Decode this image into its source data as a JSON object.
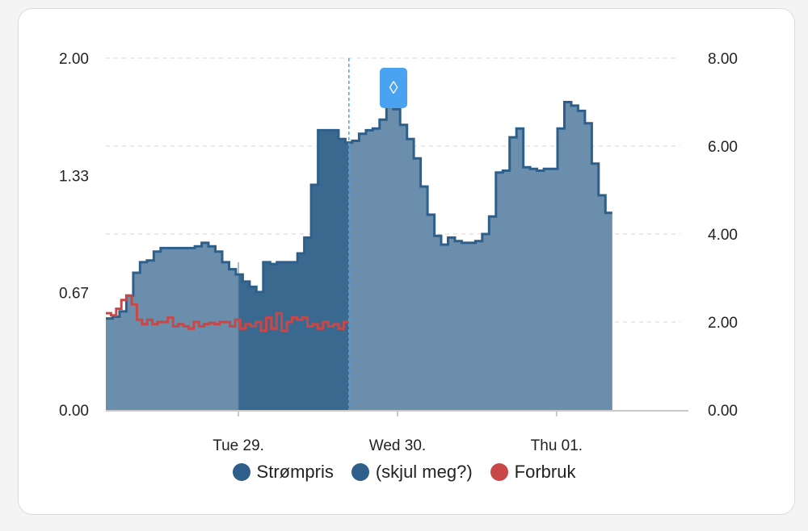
{
  "colors": {
    "price": "#2e5f8a",
    "price_fill": "#6a8eab",
    "hidden": "#2e5f8a",
    "hidden_fill": "#3a6990",
    "consumption": "#c84848",
    "grid": "#d6d6d6",
    "marker": "#4aa3f0"
  },
  "marker": {
    "icon": "up-down-arrow-icon",
    "glyph": "◊"
  },
  "chart_data": {
    "type": "area",
    "x_unit": "hour",
    "x_range": [
      0,
      65
    ],
    "x_ticks": [
      {
        "x": 15,
        "label": "Tue 29."
      },
      {
        "x": 33,
        "label": "Wed 30."
      },
      {
        "x": 51,
        "label": "Thu 01."
      }
    ],
    "y_left": {
      "range": [
        0,
        2.0
      ],
      "ticks": [
        "0.00",
        "0.67",
        "1.33",
        "2.00"
      ],
      "tick_values": [
        0,
        0.667,
        1.333,
        2.0
      ]
    },
    "y_right": {
      "range": [
        0,
        8.0
      ],
      "ticks": [
        "0.00",
        "2.00",
        "4.00",
        "6.00",
        "8.00"
      ],
      "tick_values": [
        0,
        2,
        4,
        6,
        8
      ]
    },
    "grid": true,
    "legend_position": "bottom",
    "now_x": 27.5,
    "series": [
      {
        "name": "Strømpris",
        "axis": "left",
        "step": true,
        "values": [
          0.52,
          0.53,
          0.56,
          0.65,
          0.78,
          0.84,
          0.85,
          0.9,
          0.92,
          0.92,
          0.92,
          0.92,
          0.92,
          0.93,
          0.95,
          0.93,
          0.9,
          0.84,
          0.8,
          0.77,
          0.73,
          0.7,
          0.67,
          0.84,
          0.83,
          0.84,
          0.84,
          0.84,
          0.89,
          0.98,
          1.28,
          1.59,
          1.59,
          1.59,
          1.54,
          1.52,
          1.53,
          1.57,
          1.59,
          1.6,
          1.65,
          1.75,
          1.71,
          1.62,
          1.54,
          1.43,
          1.27,
          1.11,
          0.99,
          0.94,
          0.98,
          0.96,
          0.95,
          0.95,
          0.96,
          1.0,
          1.1,
          1.35,
          1.36,
          1.55,
          1.6,
          1.38,
          1.37,
          1.36,
          1.37,
          1.37,
          1.6,
          1.75,
          1.73,
          1.7,
          1.63,
          1.4,
          1.22,
          1.12
        ]
      },
      {
        "name": "(skjul meg?)",
        "axis": "left",
        "step": true,
        "x_start": 15,
        "x_end": 27.5
      },
      {
        "name": "Forbruk",
        "axis": "right",
        "step": true,
        "values": [
          2.2,
          2.15,
          2.3,
          2.5,
          2.6,
          2.4,
          2.05,
          1.95,
          2.05,
          1.95,
          2.0,
          2.0,
          2.1,
          1.9,
          1.95,
          1.9,
          1.85,
          2.0,
          1.9,
          1.95,
          1.98,
          1.95,
          2.0,
          2.0,
          1.9,
          2.05,
          1.85,
          1.95,
          1.9,
          2.0,
          1.8,
          2.1,
          1.85,
          2.2,
          1.8,
          2.0,
          2.1,
          2.05,
          2.1,
          1.9,
          1.95,
          1.85,
          2.0,
          1.9,
          1.95,
          1.85,
          2.0
        ]
      }
    ]
  }
}
